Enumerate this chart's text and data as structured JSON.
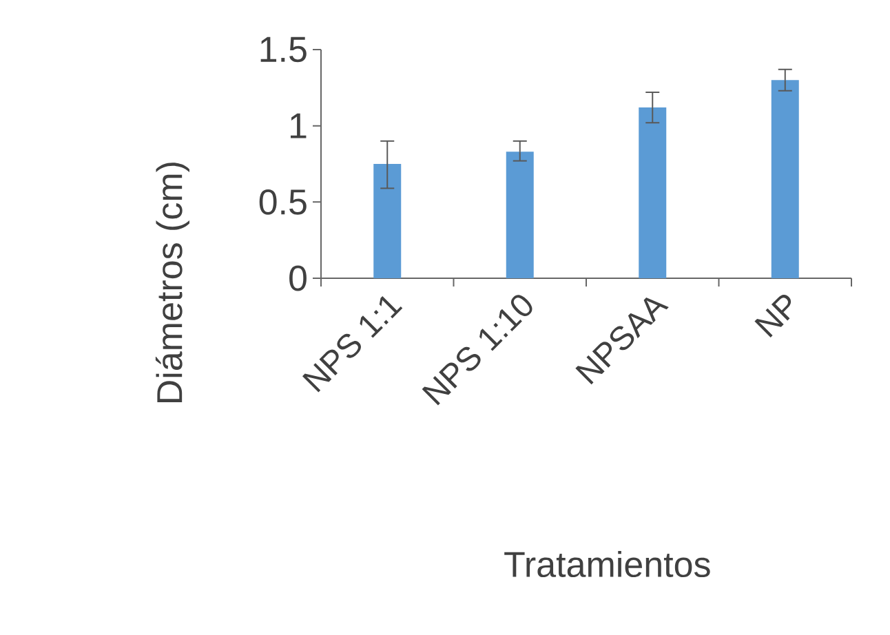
{
  "chart_data": {
    "type": "bar",
    "xlabel": "Tratamientos",
    "ylabel": "Diámetros (cm)",
    "categories": [
      "NPS 1:1",
      "NPS 1:10",
      "NPSAA",
      "NP"
    ],
    "values": [
      0.75,
      0.83,
      1.12,
      1.3
    ],
    "errors": [
      [
        0.59,
        0.9
      ],
      [
        0.77,
        0.9
      ],
      [
        1.02,
        1.22
      ],
      [
        1.23,
        1.37
      ]
    ],
    "color": "#5b9bd5",
    "ylim": [
      0,
      1.5
    ],
    "yticks": [
      0,
      0.5,
      1,
      1.5
    ],
    "grid": false
  }
}
